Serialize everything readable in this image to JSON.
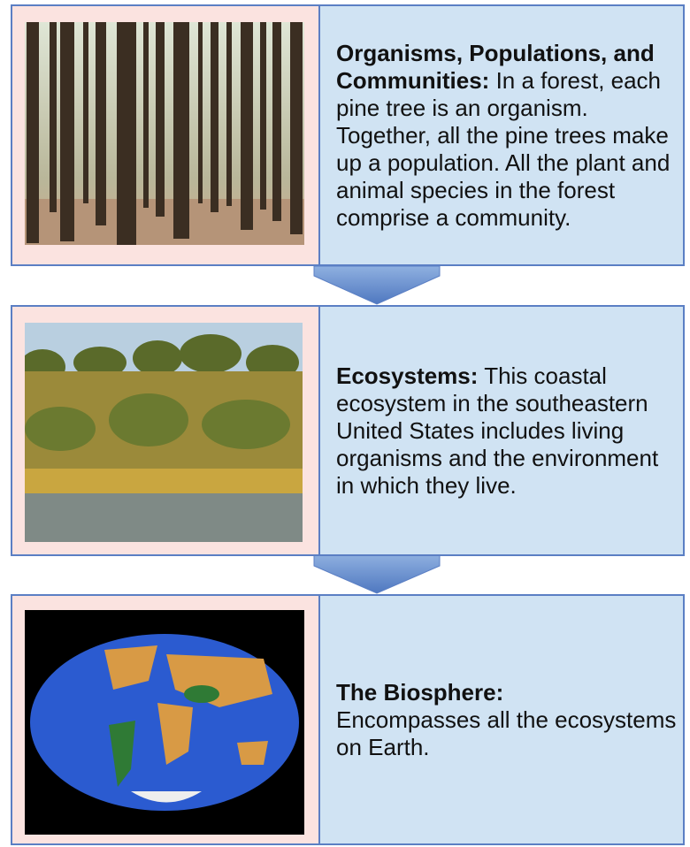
{
  "panels": [
    {
      "heading": "Organisms, Populations, and Communities:",
      "body": "In a forest, each pine tree is an organism. Together, all the pine trees make up a population. All the plant and animal species in the forest comprise a community."
    },
    {
      "heading": "Ecosystems:",
      "body": "This coastal ecosystem in the southeastern United States includes living organisms and the environment in which they live."
    },
    {
      "heading": "The Biosphere:",
      "body": "Encompasses all the ecosystems on Earth."
    }
  ]
}
